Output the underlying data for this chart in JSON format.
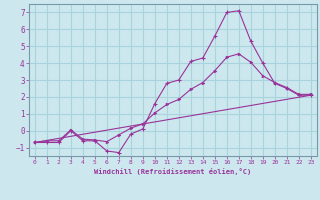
{
  "xlabel": "Windchill (Refroidissement éolien,°C)",
  "background_color": "#cce8ee",
  "grid_color": "#aad4dd",
  "line_color": "#993399",
  "spine_color": "#7799aa",
  "xlim": [
    -0.5,
    23.5
  ],
  "ylim": [
    -1.5,
    7.5
  ],
  "xticks": [
    0,
    1,
    2,
    3,
    4,
    5,
    6,
    7,
    8,
    9,
    10,
    11,
    12,
    13,
    14,
    15,
    16,
    17,
    18,
    19,
    20,
    21,
    22,
    23
  ],
  "yticks": [
    -1,
    0,
    1,
    2,
    3,
    4,
    5,
    6,
    7
  ],
  "line1_x": [
    0,
    1,
    2,
    3,
    4,
    5,
    6,
    7,
    8,
    9,
    10,
    11,
    12,
    13,
    14,
    15,
    16,
    17,
    18,
    19,
    20,
    21,
    22,
    23
  ],
  "line1_y": [
    -0.7,
    -0.7,
    -0.7,
    0.0,
    -0.6,
    -0.6,
    -1.2,
    -1.3,
    -0.2,
    0.1,
    1.6,
    2.8,
    3.0,
    4.1,
    4.3,
    5.6,
    7.0,
    7.1,
    5.3,
    4.0,
    2.8,
    2.5,
    2.1,
    2.1
  ],
  "line2_x": [
    0,
    1,
    2,
    3,
    4,
    5,
    6,
    7,
    8,
    9,
    10,
    11,
    12,
    13,
    14,
    15,
    16,
    17,
    18,
    19,
    20,
    21,
    22,
    23
  ],
  "line2_y": [
    -0.7,
    -0.6,
    -0.6,
    0.05,
    -0.5,
    -0.55,
    -0.65,
    -0.25,
    0.15,
    0.4,
    1.05,
    1.55,
    1.85,
    2.45,
    2.85,
    3.55,
    4.35,
    4.55,
    4.05,
    3.25,
    2.85,
    2.55,
    2.15,
    2.15
  ],
  "line3_x": [
    0,
    23
  ],
  "line3_y": [
    -0.7,
    2.1
  ]
}
